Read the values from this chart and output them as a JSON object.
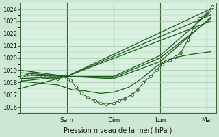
{
  "xlabel": "Pression niveau de la mer( hPa )",
  "bg_color": "#cce8d4",
  "plot_bg_color": "#d8f0e0",
  "line_color": "#1a5c1a",
  "grid_color": "#a8c8a8",
  "ylim": [
    1015.5,
    1024.5
  ],
  "xlim": [
    0.0,
    1.05
  ],
  "day_labels": [
    "Sam",
    "Dim",
    "Lun",
    "Mar"
  ],
  "day_positions": [
    0.25,
    0.5,
    0.75,
    1.0
  ],
  "series": [
    {
      "x": [
        0.0,
        0.03,
        0.06,
        0.09,
        0.12,
        0.16,
        0.2,
        0.24,
        0.27,
        0.3,
        0.33,
        0.36,
        0.4,
        0.43,
        0.46,
        0.5,
        0.53,
        0.56,
        0.6,
        0.63,
        0.66,
        0.7,
        0.73,
        0.76,
        0.8,
        0.83,
        0.86,
        0.9,
        0.93,
        0.96,
        1.0,
        1.03
      ],
      "y": [
        1018.2,
        1018.6,
        1018.8,
        1018.7,
        1018.5,
        1018.4,
        1018.3,
        1018.5,
        1018.2,
        1017.6,
        1017.1,
        1016.8,
        1016.5,
        1016.3,
        1016.2,
        1016.3,
        1016.5,
        1016.7,
        1017.0,
        1017.4,
        1018.0,
        1018.5,
        1019.0,
        1019.5,
        1019.8,
        1020.1,
        1020.4,
        1021.5,
        1022.5,
        1023.2,
        1023.6,
        1024.2
      ],
      "marker": "D",
      "markersize": 2.5,
      "linewidth": 0.8,
      "linestyle": "-"
    },
    {
      "x": [
        0.0,
        0.25,
        1.02
      ],
      "y": [
        1018.1,
        1018.5,
        1023.0
      ],
      "marker": null,
      "markersize": 0,
      "linewidth": 0.9,
      "linestyle": "-"
    },
    {
      "x": [
        0.0,
        0.25,
        1.02
      ],
      "y": [
        1018.6,
        1018.5,
        1023.5
      ],
      "marker": null,
      "markersize": 0,
      "linewidth": 0.9,
      "linestyle": "-"
    },
    {
      "x": [
        0.0,
        0.25,
        1.02
      ],
      "y": [
        1019.0,
        1018.5,
        1024.0
      ],
      "marker": null,
      "markersize": 0,
      "linewidth": 0.9,
      "linestyle": "-"
    },
    {
      "x": [
        0.0,
        0.25,
        0.5,
        0.75,
        1.02
      ],
      "y": [
        1018.8,
        1018.5,
        1018.4,
        1020.0,
        1023.2
      ],
      "marker": null,
      "markersize": 0,
      "linewidth": 0.9,
      "linestyle": "-"
    },
    {
      "x": [
        0.0,
        0.25,
        0.5,
        0.75,
        1.02
      ],
      "y": [
        1017.5,
        1018.5,
        1018.3,
        1019.7,
        1023.3
      ],
      "marker": null,
      "markersize": 0,
      "linewidth": 0.9,
      "linestyle": "-"
    },
    {
      "x": [
        0.0,
        0.25,
        0.5,
        0.75,
        1.02
      ],
      "y": [
        1018.3,
        1018.5,
        1018.5,
        1020.2,
        1023.8
      ],
      "marker": null,
      "markersize": 0,
      "linewidth": 0.9,
      "linestyle": "-"
    },
    {
      "x": [
        0.0,
        0.2,
        0.28,
        0.35,
        0.43,
        0.5,
        0.58,
        0.65,
        0.72,
        0.78,
        0.85,
        0.92,
        1.02
      ],
      "y": [
        1018.1,
        1017.8,
        1017.4,
        1017.3,
        1017.1,
        1017.2,
        1017.6,
        1018.3,
        1019.2,
        1019.8,
        1020.1,
        1020.3,
        1020.5
      ],
      "marker": null,
      "markersize": 0,
      "linewidth": 0.9,
      "linestyle": "-"
    }
  ]
}
